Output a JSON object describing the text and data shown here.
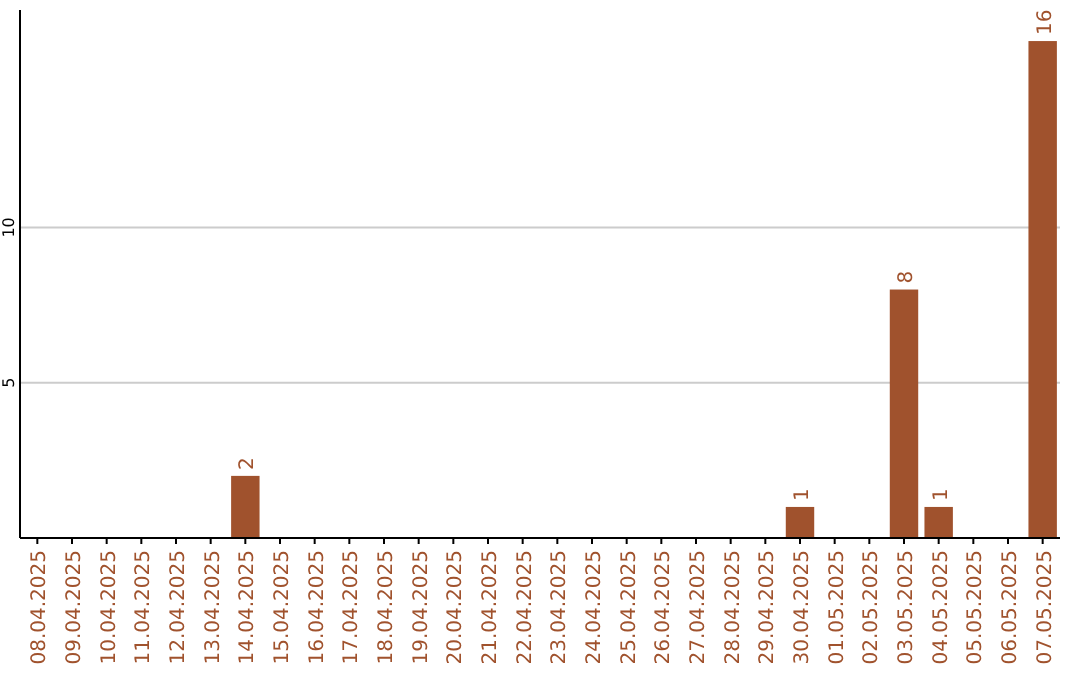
{
  "chart_data": {
    "type": "bar",
    "categories": [
      "08.04.2025",
      "09.04.2025",
      "10.04.2025",
      "11.04.2025",
      "12.04.2025",
      "13.04.2025",
      "14.04.2025",
      "15.04.2025",
      "16.04.2025",
      "17.04.2025",
      "18.04.2025",
      "19.04.2025",
      "20.04.2025",
      "21.04.2025",
      "22.04.2025",
      "23.04.2025",
      "24.04.2025",
      "25.04.2025",
      "26.04.2025",
      "27.04.2025",
      "28.04.2025",
      "29.04.2025",
      "30.04.2025",
      "01.05.2025",
      "02.05.2025",
      "03.05.2025",
      "04.05.2025",
      "05.05.2025",
      "06.05.2025",
      "07.05.2025"
    ],
    "values": [
      0,
      0,
      0,
      0,
      0,
      0,
      2,
      0,
      0,
      0,
      0,
      0,
      0,
      0,
      0,
      0,
      0,
      0,
      0,
      0,
      0,
      0,
      1,
      0,
      0,
      8,
      1,
      0,
      0,
      16
    ],
    "value_labels": [
      null,
      null,
      null,
      null,
      null,
      null,
      "2",
      null,
      null,
      null,
      null,
      null,
      null,
      null,
      null,
      null,
      null,
      null,
      null,
      null,
      null,
      null,
      "1",
      null,
      null,
      "8",
      "1",
      null,
      null,
      "16"
    ],
    "color": "#a0522d",
    "ylim": [
      0,
      17
    ],
    "yticks": [
      5,
      10
    ],
    "grid": "y"
  }
}
